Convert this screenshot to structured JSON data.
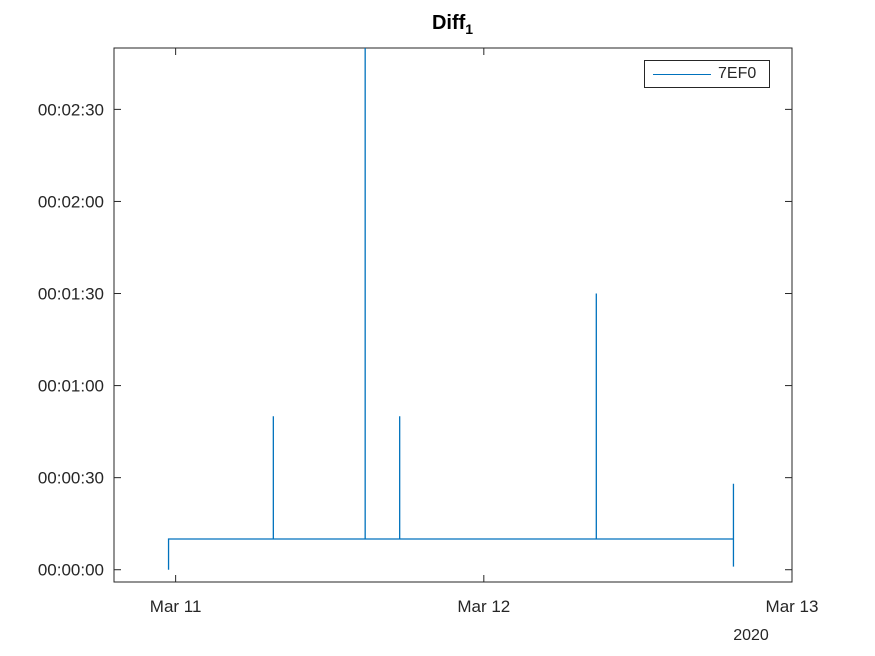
{
  "chart_data": {
    "type": "line",
    "title": "Diff",
    "title_subscript": "1",
    "xlabel": "",
    "ylabel": "",
    "x_year_label": "2020",
    "x_ticks": [
      {
        "value": 0,
        "label": "Mar 11"
      },
      {
        "value": 1,
        "label": "Mar 12"
      },
      {
        "value": 2,
        "label": "Mar 13"
      }
    ],
    "xlim": [
      -0.2,
      1.0
    ],
    "xlim_days": [
      -0.2,
      2.0
    ],
    "y_ticks": [
      {
        "value": 0,
        "label": "00:00:00"
      },
      {
        "value": 30,
        "label": "00:00:30"
      },
      {
        "value": 60,
        "label": "00:01:00"
      },
      {
        "value": 90,
        "label": "00:01:30"
      },
      {
        "value": 120,
        "label": "00:02:00"
      },
      {
        "value": 150,
        "label": "00:02:30"
      }
    ],
    "ylim_seconds": [
      -4,
      170
    ],
    "legend": {
      "position": "top-right",
      "entries": [
        "7EF0"
      ]
    },
    "series": [
      {
        "name": "7EF0",
        "color": "#0072BD",
        "x_days": [
          -0.023,
          -0.023,
          0.317,
          0.317,
          0.317,
          0.615,
          0.615,
          0.615,
          0.727,
          0.727,
          0.727,
          1.365,
          1.365,
          1.365,
          1.81,
          1.81,
          1.81
        ],
        "y_seconds": [
          0,
          10,
          10,
          50,
          10,
          10,
          170,
          10,
          10,
          50,
          10,
          10,
          90,
          10,
          10,
          28,
          1
        ]
      }
    ]
  }
}
